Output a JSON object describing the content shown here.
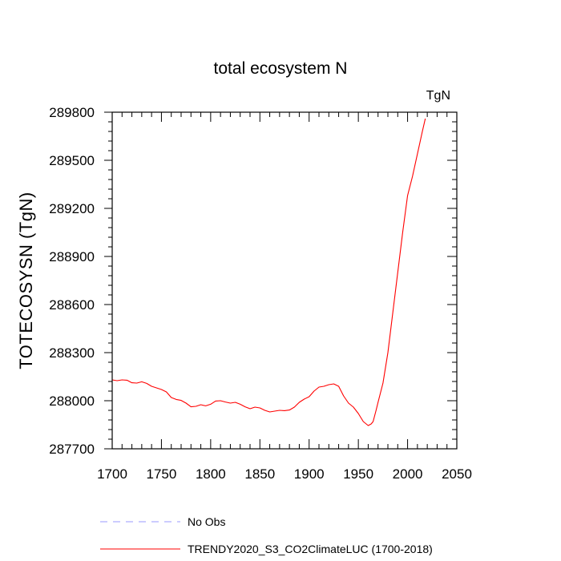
{
  "chart_data": {
    "type": "line",
    "title": "total ecosystem N",
    "units_label": "TgN",
    "ylabel": "TOTECOSYSN  (TgN)",
    "xlabel": "",
    "xlim": [
      1700,
      2050
    ],
    "ylim": [
      287700,
      289800
    ],
    "x_ticks": [
      1700,
      1750,
      1800,
      1850,
      1900,
      1950,
      2000,
      2050
    ],
    "y_ticks": [
      287700,
      288000,
      288300,
      288600,
      288900,
      289200,
      289500,
      289800
    ],
    "x_tick_labels": [
      "1700",
      "1750",
      "1800",
      "1850",
      "1900",
      "1950",
      "2000",
      "2050"
    ],
    "y_tick_labels": [
      "287700",
      "288000",
      "288300",
      "288600",
      "288900",
      "289200",
      "289500",
      "289800"
    ],
    "grid": false,
    "series": [
      {
        "name": "TRENDY2020_S3_CO2ClimateLUC (1700-2018)",
        "color": "#ff0000",
        "style": "solid",
        "x": [
          1700,
          1705,
          1710,
          1715,
          1720,
          1725,
          1730,
          1735,
          1740,
          1745,
          1750,
          1755,
          1760,
          1765,
          1770,
          1775,
          1780,
          1785,
          1790,
          1795,
          1800,
          1805,
          1810,
          1815,
          1820,
          1825,
          1830,
          1835,
          1840,
          1845,
          1850,
          1855,
          1860,
          1865,
          1870,
          1875,
          1880,
          1885,
          1890,
          1895,
          1900,
          1905,
          1910,
          1915,
          1920,
          1925,
          1930,
          1935,
          1940,
          1945,
          1950,
          1955,
          1960,
          1963,
          1965,
          1968,
          1970,
          1975,
          1980,
          1985,
          1990,
          1995,
          2000,
          2005,
          2010,
          2015,
          2018
        ],
        "values": [
          288130,
          288125,
          288130,
          288128,
          288112,
          288110,
          288118,
          288108,
          288090,
          288080,
          288070,
          288055,
          288020,
          288008,
          288002,
          287985,
          287962,
          287965,
          287975,
          287968,
          287978,
          287998,
          288000,
          287992,
          287985,
          287990,
          287978,
          287962,
          287950,
          287960,
          287955,
          287940,
          287930,
          287935,
          287940,
          287938,
          287942,
          287960,
          287990,
          288010,
          288025,
          288060,
          288085,
          288090,
          288100,
          288105,
          288090,
          288030,
          287985,
          287960,
          287920,
          287870,
          287845,
          287855,
          287870,
          287940,
          287990,
          288110,
          288300,
          288550,
          288800,
          289050,
          289280,
          289400,
          289540,
          289680,
          289760
        ]
      },
      {
        "name": "No Obs",
        "color": "#9999ff",
        "style": "dashed",
        "x": [],
        "values": []
      }
    ],
    "legend": {
      "placement": "bottom",
      "entries": [
        "No Obs",
        "TRENDY2020_S3_CO2ClimateLUC (1700-2018)"
      ]
    }
  }
}
